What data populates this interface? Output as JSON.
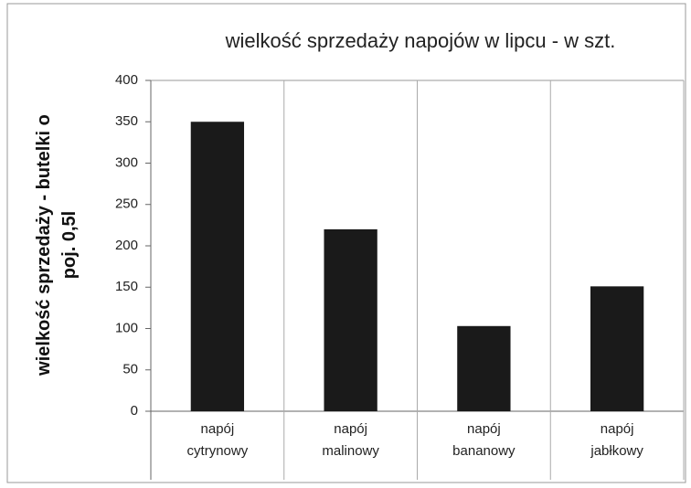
{
  "chart_data": {
    "type": "bar",
    "title": "wielkość sprzedaży  napojów  w lipcu - w szt.",
    "y_label": "wielkość sprzedaży - butelki o poj. 0,5l",
    "categories": [
      "napój cytrynowy",
      "napój malinowy",
      "napój bananowy",
      "napój jabłkowy"
    ],
    "values": [
      350,
      220,
      103,
      151
    ],
    "color": "#1a1a1a",
    "ylim": [
      0,
      400
    ],
    "yticks": [
      0,
      50,
      100,
      150,
      200,
      250,
      300,
      350,
      400
    ],
    "grid": false
  }
}
